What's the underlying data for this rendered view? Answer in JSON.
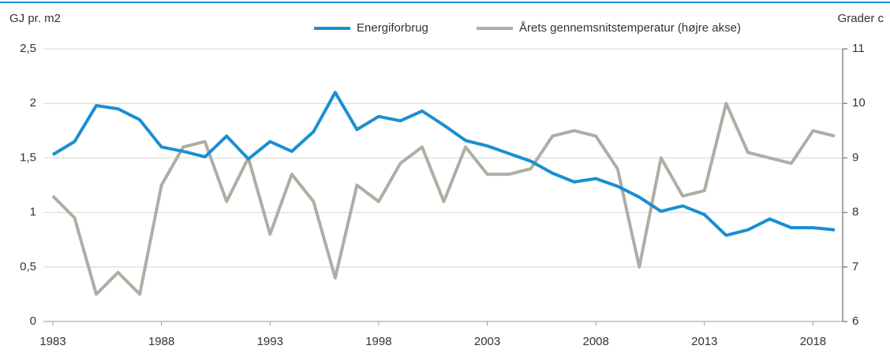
{
  "chart_data": {
    "type": "line",
    "y_label": "GJ pr. m2",
    "y2_label": "Grader c",
    "x": [
      1983,
      1984,
      1985,
      1986,
      1987,
      1988,
      1989,
      1990,
      1991,
      1992,
      1993,
      1994,
      1995,
      1996,
      1997,
      1998,
      1999,
      2000,
      2001,
      2002,
      2003,
      2004,
      2005,
      2006,
      2007,
      2008,
      2009,
      2010,
      2011,
      2012,
      2013,
      2014,
      2015,
      2016,
      2017,
      2018,
      2019
    ],
    "series": [
      {
        "name": "Energiforbrug",
        "color": "#1a8fd1",
        "values": [
          1.53,
          1.65,
          1.98,
          1.95,
          1.85,
          1.6,
          1.56,
          1.51,
          1.7,
          1.49,
          1.65,
          1.56,
          1.74,
          2.1,
          1.76,
          1.88,
          1.84,
          1.93,
          1.8,
          1.66,
          1.61,
          1.54,
          1.47,
          1.36,
          1.28,
          1.31,
          1.24,
          1.14,
          1.01,
          1.06,
          0.98,
          0.79,
          0.84,
          0.94,
          0.86,
          0.86,
          0.84
        ]
      },
      {
        "name": "Årets gennemsnitstemperatur (højre akse)",
        "color": "#b0ada3",
        "axis": "y2",
        "values": [
          8.3,
          7.9,
          6.5,
          6.9,
          6.5,
          8.5,
          9.2,
          9.3,
          8.2,
          9.0,
          7.6,
          8.7,
          8.2,
          6.8,
          8.5,
          8.2,
          8.9,
          9.2,
          8.2,
          9.2,
          8.7,
          8.7,
          8.8,
          9.4,
          9.5,
          9.4,
          8.8,
          7.0,
          9.0,
          8.3,
          8.4,
          10.0,
          9.1,
          9.0,
          8.9,
          9.5,
          9.4
        ]
      }
    ],
    "xlim": [
      1983,
      2019
    ],
    "xticks": [
      1983,
      1988,
      1993,
      1998,
      2003,
      2008,
      2013,
      2018
    ],
    "ylim": [
      0,
      2.5
    ],
    "yticks": [
      0,
      {
        "value": 0.5,
        "label": "0,5"
      },
      1,
      {
        "value": 1.5,
        "label": "1,5"
      },
      2,
      {
        "value": 2.5,
        "label": "2,5"
      }
    ],
    "y2lim": [
      6,
      11
    ],
    "y2ticks": [
      6,
      7,
      8,
      9,
      10,
      11
    ],
    "grid": true
  }
}
